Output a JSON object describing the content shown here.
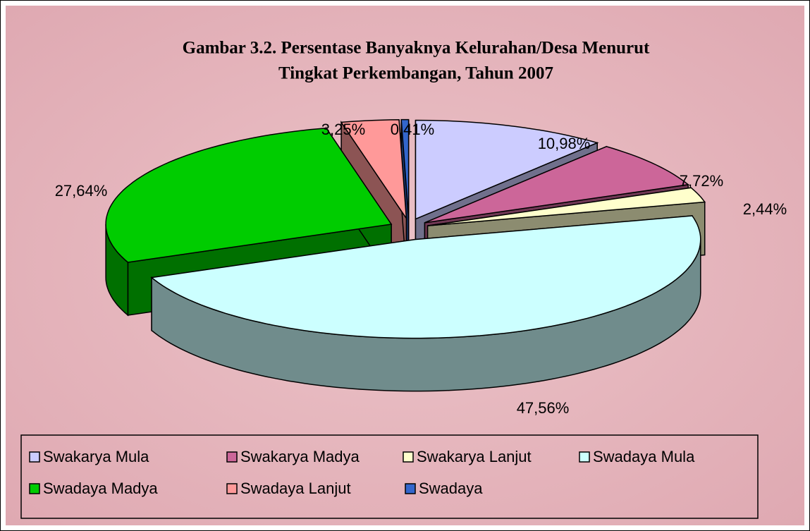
{
  "chart_data": {
    "type": "pie3d",
    "title": "Gambar 3.2. Persentase Banyaknya Kelurahan/Desa Menurut Tingkat Perkembangan, Tahun 2007",
    "title_lines": [
      "Gambar 3.2. Persentase Banyaknya Kelurahan/Desa Menurut",
      "Tingkat Perkembangan, Tahun 2007"
    ],
    "categories": [
      "Swakarya Mula",
      "Swakarya Madya",
      "Swakarya Lanjut",
      "Swadaya Mula",
      "Swadaya Madya",
      "Swadaya Lanjut",
      "Swadaya"
    ],
    "values": [
      10.98,
      7.72,
      2.44,
      47.56,
      27.64,
      3.25,
      0.41
    ],
    "value_labels": [
      "10,98%",
      "7,72%",
      "2,44%",
      "47,56%",
      "27,64%",
      "3,25%",
      "0,41%"
    ],
    "colors": [
      "#ccccff",
      "#cc6699",
      "#ffffcc",
      "#ccffff",
      "#00cc00",
      "#ff9999",
      "#3366cc"
    ],
    "legend": "bottom"
  }
}
